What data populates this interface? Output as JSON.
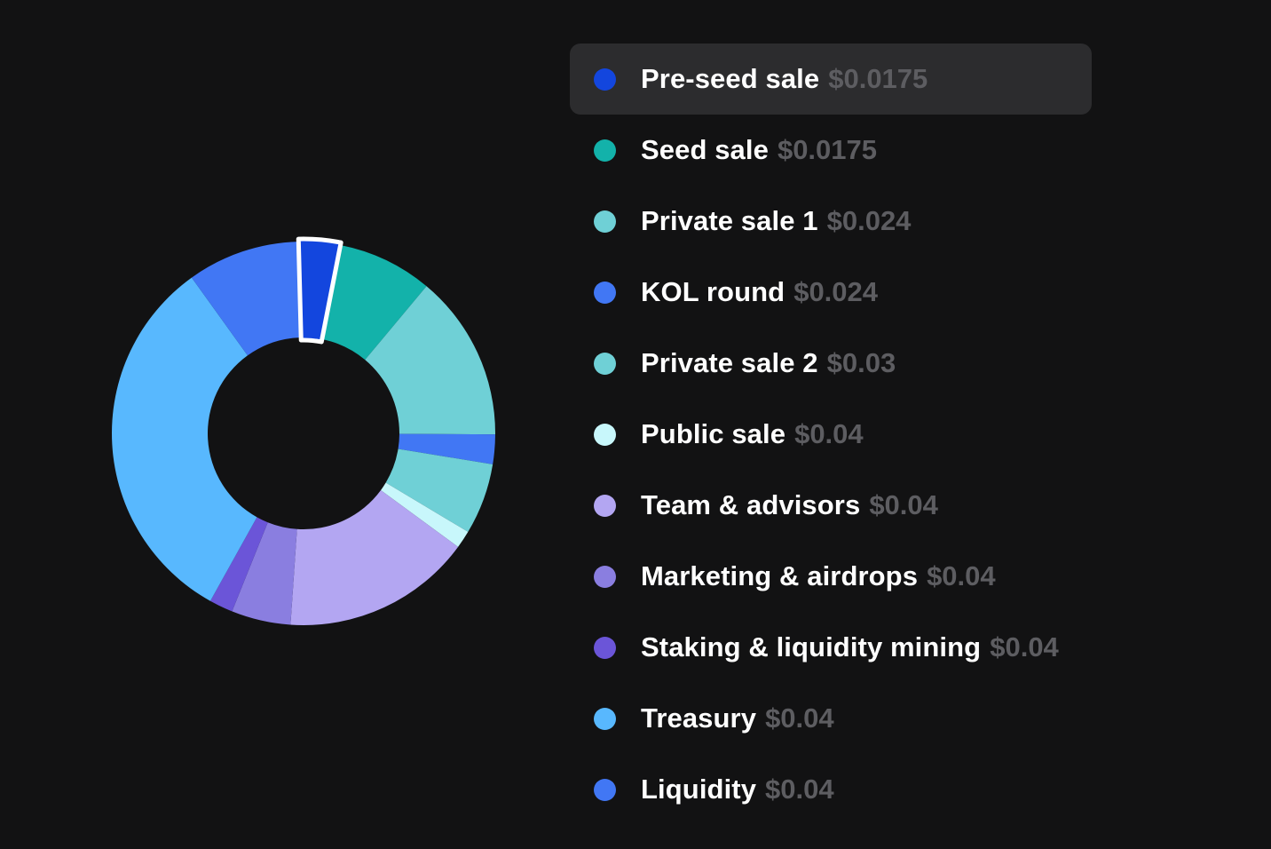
{
  "chart_data": {
    "type": "pie",
    "variant": "donut",
    "categories": [
      "Pre-seed sale",
      "Seed sale",
      "Private sale 1",
      "KOL round",
      "Private sale 2",
      "Public sale",
      "Team & advisors",
      "Marketing & airdrops",
      "Staking & liquidity mining",
      "Treasury",
      "Liquidity"
    ],
    "prices": [
      "$0.0175",
      "$0.0175",
      "$0.024",
      "$0.024",
      "$0.03",
      "$0.04",
      "$0.04",
      "$0.04",
      "$0.04",
      "$0.04",
      "$0.04"
    ],
    "values": [
      3.5,
      8,
      14,
      2.5,
      6,
      1.5,
      16,
      5,
      2,
      32,
      9.5
    ],
    "colors": [
      "#1346de",
      "#13b2aa",
      "#6fd0d6",
      "#4177f4",
      "#6fd0d6",
      "#c8f7fb",
      "#b3a6f2",
      "#8a7ee0",
      "#6b55d8",
      "#58b8fe",
      "#4177f4"
    ],
    "highlighted_index": 0,
    "legend_position": "right"
  }
}
